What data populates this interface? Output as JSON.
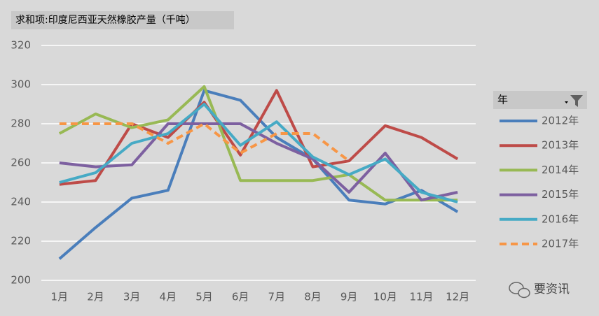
{
  "chart_data": {
    "type": "line",
    "title": "求和项:印度尼西亚天然橡胶产量（千吨）",
    "legend_title": "年",
    "legend_position": "right",
    "watermark": "要资讯",
    "categories": [
      "1月",
      "2月",
      "3月",
      "4月",
      "5月",
      "6月",
      "7月",
      "8月",
      "9月",
      "10月",
      "11月",
      "12月"
    ],
    "ylim": [
      200,
      320
    ],
    "yticks": [
      200,
      220,
      240,
      260,
      280,
      300,
      320
    ],
    "grid": true,
    "series": [
      {
        "name": "2012年",
        "color": "#4a7ebb",
        "style": "solid",
        "values": [
          211,
          227,
          242,
          246,
          297,
          292,
          273,
          262,
          241,
          239,
          246,
          235
        ]
      },
      {
        "name": "2013年",
        "color": "#be4b48",
        "style": "solid",
        "values": [
          249,
          251,
          280,
          273,
          291,
          264,
          297,
          258,
          261,
          279,
          273,
          262
        ]
      },
      {
        "name": "2014年",
        "color": "#98b954",
        "style": "solid",
        "values": [
          275,
          285,
          278,
          282,
          299,
          251,
          251,
          251,
          254,
          241,
          241,
          241
        ]
      },
      {
        "name": "2015年",
        "color": "#7d60a0",
        "style": "solid",
        "values": [
          260,
          258,
          259,
          280,
          280,
          280,
          270,
          262,
          245,
          265,
          241,
          245
        ]
      },
      {
        "name": "2016年",
        "color": "#46aac5",
        "style": "solid",
        "values": [
          250,
          255,
          270,
          275,
          290,
          269,
          281,
          263,
          254,
          262,
          245,
          240
        ]
      },
      {
        "name": "2017年",
        "color": "#f79646",
        "style": "dashed",
        "values": [
          280,
          280,
          280,
          270,
          280,
          265,
          275,
          275,
          261,
          null,
          null,
          null
        ]
      }
    ]
  }
}
